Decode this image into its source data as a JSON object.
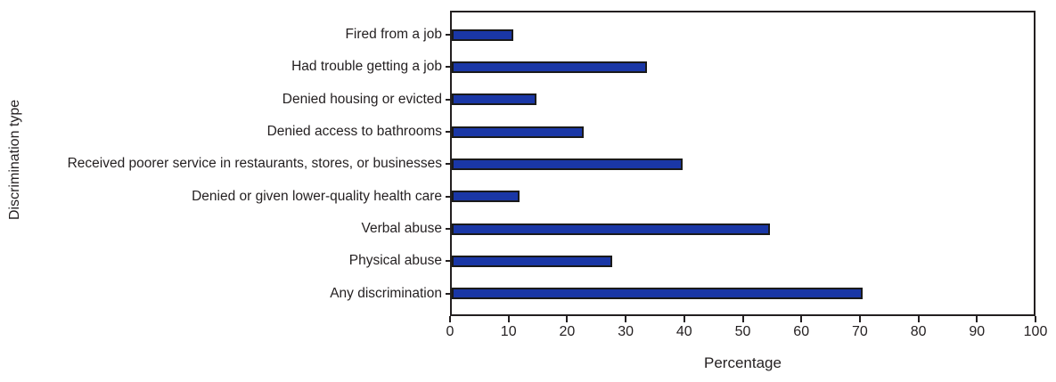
{
  "chart_data": {
    "type": "bar",
    "orientation": "horizontal",
    "ylabel": "Discrimination type",
    "xlabel": "Percentage",
    "categories": [
      "Fired from a job",
      "Had trouble getting a job",
      "Denied housing or evicted",
      "Denied access to bathrooms",
      "Received poorer service in restaurants, stores, or businesses",
      "Denied or given lower-quality health care",
      "Verbal abuse",
      "Physical abuse",
      "Any discrimination"
    ],
    "values": [
      10,
      33,
      14,
      22,
      39,
      11,
      54,
      27,
      70
    ],
    "xlim": [
      0,
      100
    ],
    "xticks": [
      0,
      10,
      20,
      30,
      40,
      50,
      60,
      70,
      80,
      90,
      100
    ],
    "grid": false,
    "legend": null,
    "bar_color": "#1a37a6",
    "bar_border_color": "#1a1a1a",
    "axis_color": "#231f20",
    "background_color": "#ffffff"
  }
}
